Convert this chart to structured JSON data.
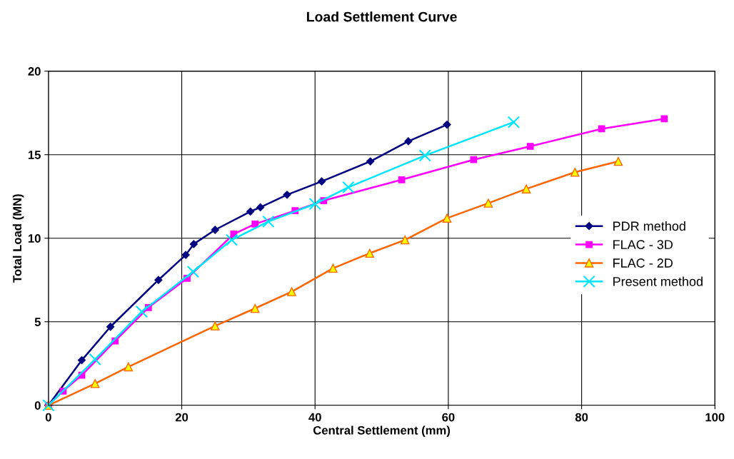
{
  "chart_data": {
    "type": "line",
    "title": "Load Settlement Curve",
    "xlabel": "Central Settlement (mm)",
    "ylabel": "Total Load (MN)",
    "xlim": [
      0,
      100
    ],
    "xticks": [
      0,
      20,
      40,
      60,
      80,
      100
    ],
    "ylim": [
      0,
      20
    ],
    "yticks": [
      0,
      5,
      10,
      15,
      20
    ],
    "grid": true,
    "legend": "right",
    "series": [
      {
        "name": "PDR method",
        "color": "#000080",
        "marker": "diamond",
        "x": [
          0,
          5,
          9.3,
          16.5,
          20.6,
          21.8,
          25,
          30.3,
          31.8,
          35.8,
          41,
          48.3,
          54,
          59.8
        ],
        "values": [
          0,
          2.7,
          4.7,
          7.5,
          9.0,
          9.65,
          10.5,
          11.6,
          11.85,
          12.6,
          13.4,
          14.6,
          15.8,
          16.8
        ]
      },
      {
        "name": "FLAC - 3D",
        "color": "#ff00ff",
        "marker": "square",
        "x": [
          0,
          2.2,
          5,
          10,
          15,
          20.8,
          27.8,
          31,
          37,
          41.3,
          53,
          63.8,
          72.3,
          83,
          92.4
        ],
        "values": [
          0,
          0.85,
          1.8,
          3.85,
          5.85,
          7.6,
          10.25,
          10.85,
          11.65,
          12.25,
          13.5,
          14.7,
          15.5,
          16.55,
          17.15
        ]
      },
      {
        "name": "FLAC - 2D",
        "color": "#ff6600",
        "marker": "triangle",
        "x": [
          0,
          7,
          12,
          25,
          31,
          36.5,
          42.7,
          48.2,
          53.5,
          59.8,
          66,
          71.7,
          79,
          85.5
        ],
        "values": [
          0,
          1.3,
          2.3,
          4.75,
          5.8,
          6.8,
          8.2,
          9.1,
          9.9,
          11.2,
          12.1,
          12.95,
          13.95,
          14.6
        ]
      },
      {
        "name": "Present method",
        "color": "#00e5ff",
        "marker": "cross",
        "x": [
          0,
          7,
          14,
          21.7,
          27.5,
          33,
          40,
          45,
          56.5,
          69.8
        ],
        "values": [
          0,
          2.75,
          5.6,
          8.0,
          9.9,
          11,
          12.05,
          13.05,
          14.95,
          16.95
        ]
      }
    ]
  }
}
